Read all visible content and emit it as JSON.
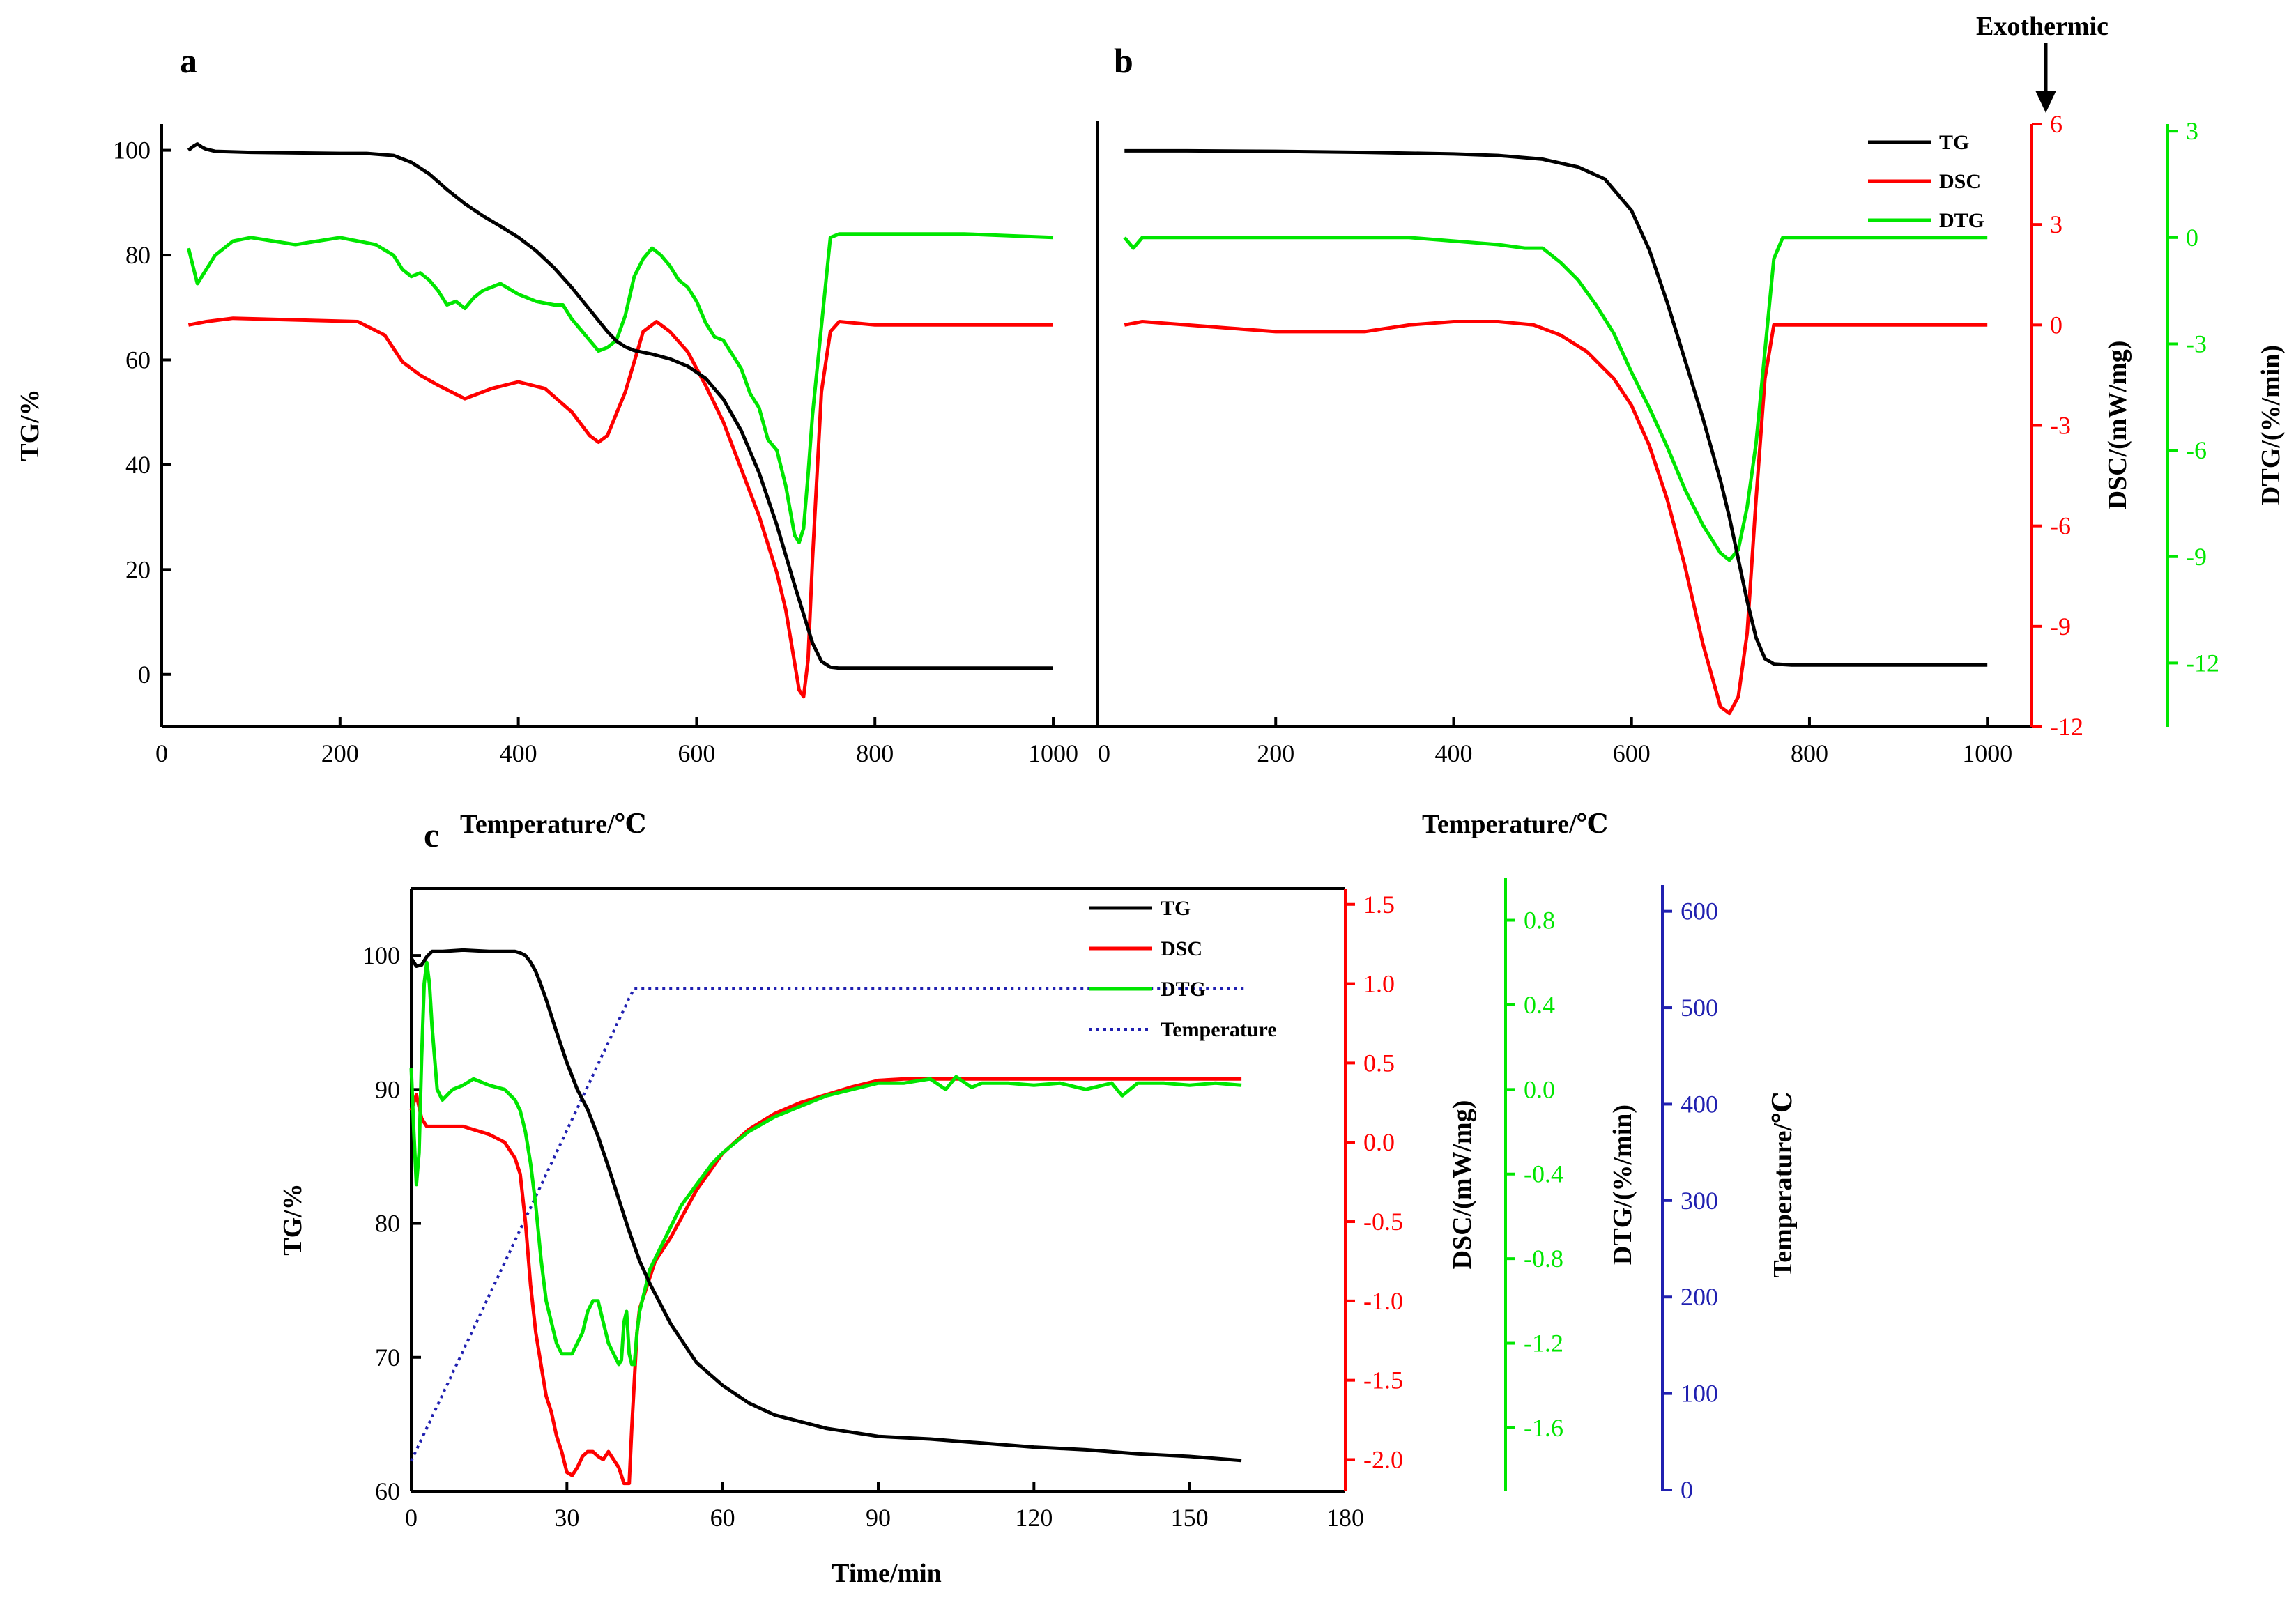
{
  "colors": {
    "tg": "#000000",
    "dsc": "#ff0000",
    "dtg": "#00e600",
    "temperature": "#2020b0"
  },
  "annotation": {
    "exothermic": "Exothermic"
  },
  "chart_data": [
    {
      "panel": "a",
      "type": "line",
      "xlabel": "Temperature/℃",
      "xlim": [
        0,
        1050
      ],
      "xticks": [
        0,
        200,
        400,
        600,
        800,
        1000
      ],
      "ylabel": "TG/%",
      "ylim": [
        -10,
        105
      ],
      "yticks": [
        0,
        20,
        40,
        60,
        80,
        100
      ],
      "series": [
        {
          "name": "TG",
          "axis": "left",
          "color": "#000000",
          "x": [
            30,
            35,
            40,
            45,
            50,
            60,
            80,
            100,
            150,
            200,
            230,
            260,
            280,
            300,
            320,
            340,
            360,
            380,
            400,
            420,
            440,
            460,
            480,
            500,
            510,
            520,
            530,
            550,
            570,
            590,
            610,
            630,
            650,
            670,
            690,
            710,
            730,
            740,
            750,
            760,
            800,
            900,
            1000
          ],
          "y": [
            100,
            100.7,
            101.2,
            100.6,
            100.2,
            99.8,
            99.7,
            99.6,
            99.5,
            99.4,
            99.4,
            99,
            97.7,
            95.5,
            92.5,
            89.8,
            87.5,
            85.5,
            83.4,
            80.8,
            77.6,
            73.8,
            69.6,
            65.4,
            63.6,
            62.5,
            61.8,
            61.1,
            60.2,
            58.8,
            56.5,
            52.5,
            46.5,
            38.5,
            28.5,
            17,
            6,
            2.5,
            1.4,
            1.2,
            1.2,
            1.2,
            1.2
          ]
        },
        {
          "name": "DSC",
          "axis": "right",
          "color": "#ff0000",
          "x": [
            30,
            50,
            80,
            150,
            220,
            250,
            270,
            290,
            310,
            340,
            370,
            400,
            430,
            460,
            480,
            490,
            500,
            520,
            540,
            555,
            570,
            590,
            610,
            630,
            650,
            670,
            690,
            700,
            710,
            715,
            720,
            725,
            730,
            740,
            750,
            760,
            800,
            900,
            1000
          ],
          "y": [
            0,
            0.1,
            0.2,
            0.15,
            0.1,
            -0.3,
            -1.1,
            -1.5,
            -1.8,
            -2.2,
            -1.9,
            -1.7,
            -1.9,
            -2.6,
            -3.3,
            -3.5,
            -3.3,
            -2,
            -0.2,
            0.1,
            -0.2,
            -0.8,
            -1.8,
            -2.9,
            -4.3,
            -5.7,
            -7.4,
            -8.5,
            -10.1,
            -10.9,
            -11.1,
            -10,
            -7,
            -2,
            -0.2,
            0.1,
            0,
            0,
            0
          ]
        },
        {
          "name": "DTG",
          "axis": "right2",
          "color": "#00e600",
          "x": [
            30,
            40,
            50,
            60,
            80,
            100,
            150,
            200,
            240,
            260,
            270,
            280,
            290,
            300,
            310,
            320,
            330,
            340,
            350,
            360,
            380,
            400,
            420,
            440,
            450,
            460,
            470,
            480,
            490,
            500,
            510,
            520,
            530,
            540,
            550,
            560,
            570,
            580,
            590,
            600,
            610,
            620,
            630,
            640,
            650,
            660,
            670,
            680,
            690,
            700,
            710,
            715,
            720,
            725,
            730,
            740,
            750,
            760,
            770,
            800,
            900,
            1000
          ],
          "y": [
            -0.3,
            -1.3,
            -0.9,
            -0.5,
            -0.1,
            0,
            -0.2,
            0,
            -0.2,
            -0.5,
            -0.9,
            -1.1,
            -1,
            -1.2,
            -1.5,
            -1.9,
            -1.8,
            -2,
            -1.7,
            -1.5,
            -1.3,
            -1.6,
            -1.8,
            -1.9,
            -1.9,
            -2.3,
            -2.6,
            -2.9,
            -3.2,
            -3.1,
            -2.9,
            -2.2,
            -1.1,
            -0.6,
            -0.3,
            -0.5,
            -0.8,
            -1.2,
            -1.4,
            -1.8,
            -2.4,
            -2.8,
            -2.9,
            -3.3,
            -3.7,
            -4.4,
            -4.8,
            -5.7,
            -6,
            -7,
            -8.4,
            -8.6,
            -8.2,
            -6.7,
            -5,
            -2.5,
            0,
            0.1,
            0.1,
            0.1,
            0.1,
            0
          ]
        }
      ]
    },
    {
      "panel": "b",
      "type": "line",
      "xlabel": "Temperature/℃",
      "xlim": [
        0,
        1050
      ],
      "xticks": [
        200,
        400,
        600,
        800,
        1000
      ],
      "ylabel_right": "DSC/(mW/mg)",
      "ylim_right": [
        -12,
        6
      ],
      "yticks_right": [
        -12,
        -9,
        -6,
        -3,
        0,
        3,
        6
      ],
      "ylabel_right2": "DTG/(%/min)",
      "ylim_right2": [
        -13.8,
        3.2
      ],
      "yticks_right2": [
        -12,
        -9,
        -6,
        -3,
        0,
        3
      ],
      "legend": [
        "TG",
        "DSC",
        "DTG"
      ],
      "series": [
        {
          "name": "TG",
          "axis": "left",
          "color": "#000000",
          "x": [
            30,
            100,
            200,
            300,
            400,
            450,
            500,
            540,
            570,
            600,
            620,
            640,
            660,
            680,
            700,
            710,
            720,
            730,
            740,
            750,
            760,
            780,
            800,
            900,
            1000
          ],
          "y": [
            99.9,
            99.9,
            99.8,
            99.6,
            99.3,
            99,
            98.3,
            96.8,
            94.5,
            88.5,
            81,
            71,
            60,
            49,
            37,
            30,
            22,
            14,
            7,
            3,
            2,
            1.8,
            1.8,
            1.8,
            1.8
          ]
        },
        {
          "name": "DSC",
          "axis": "right",
          "color": "#ff0000",
          "x": [
            30,
            50,
            100,
            150,
            200,
            250,
            300,
            350,
            400,
            450,
            490,
            520,
            550,
            580,
            600,
            620,
            640,
            660,
            680,
            700,
            710,
            720,
            730,
            740,
            750,
            760,
            800,
            900,
            1000
          ],
          "y": [
            0,
            0.1,
            0,
            -0.1,
            -0.2,
            -0.2,
            -0.2,
            0,
            0.1,
            0.1,
            0,
            -0.3,
            -0.8,
            -1.6,
            -2.4,
            -3.6,
            -5.2,
            -7.2,
            -9.5,
            -11.4,
            -11.6,
            -11.1,
            -9.2,
            -5.2,
            -1.6,
            0,
            0,
            0,
            0
          ]
        },
        {
          "name": "DTG",
          "axis": "right2",
          "color": "#00e600",
          "x": [
            30,
            40,
            50,
            100,
            150,
            200,
            250,
            300,
            350,
            400,
            450,
            480,
            500,
            520,
            540,
            560,
            580,
            600,
            620,
            640,
            660,
            680,
            700,
            710,
            720,
            730,
            740,
            750,
            760,
            770,
            800,
            900,
            1000
          ],
          "y": [
            0,
            -0.3,
            0,
            0,
            0,
            0,
            0,
            0,
            0,
            -0.1,
            -0.2,
            -0.3,
            -0.3,
            -0.7,
            -1.2,
            -1.9,
            -2.7,
            -3.8,
            -4.8,
            -5.9,
            -7.1,
            -8.1,
            -8.9,
            -9.1,
            -8.8,
            -7.6,
            -5.8,
            -3.2,
            -0.6,
            0,
            0,
            0,
            0
          ]
        }
      ]
    },
    {
      "panel": "c",
      "type": "line",
      "xlabel": "Time/min",
      "xlim": [
        0,
        180
      ],
      "xticks": [
        0,
        30,
        60,
        90,
        120,
        150,
        180
      ],
      "ylabel": "TG/%",
      "ylim": [
        60,
        105
      ],
      "yticks": [
        60,
        70,
        80,
        90,
        100
      ],
      "ylabel_right": "DSC/(mW/mg)",
      "ylim_right": [
        -2.2,
        1.6
      ],
      "yticks_right": [
        -2.0,
        -1.5,
        -1.0,
        -0.5,
        0.0,
        0.5,
        1.0,
        1.5
      ],
      "ylabel_right2": "DTG/(%/min)",
      "ylim_right2": [
        -1.9,
        0.95
      ],
      "yticks_right2": [
        -1.6,
        -1.2,
        -0.8,
        -0.4,
        0.0,
        0.4,
        0.8
      ],
      "ylabel_right3": "Temperature/℃",
      "ylim_right3": [
        0,
        620
      ],
      "yticks_right3": [
        0,
        100,
        200,
        300,
        400,
        500,
        600
      ],
      "legend": [
        "TG",
        "DSC",
        "DTG",
        "Temperature"
      ],
      "series": [
        {
          "name": "TG",
          "axis": "left",
          "color": "#000000",
          "x": [
            0,
            1,
            2,
            3,
            4,
            5,
            6,
            10,
            15,
            20,
            21,
            22,
            23,
            24,
            25,
            26,
            28,
            30,
            32,
            34,
            36,
            38,
            40,
            42,
            44,
            46,
            50,
            55,
            60,
            65,
            70,
            80,
            90,
            100,
            110,
            120,
            130,
            140,
            150,
            160
          ],
          "y": [
            99.8,
            99.2,
            99.3,
            99.9,
            100.3,
            100.3,
            100.3,
            100.4,
            100.3,
            100.3,
            100.2,
            100,
            99.5,
            98.8,
            97.8,
            96.7,
            94.3,
            92,
            90,
            88.5,
            86.5,
            84.2,
            81.8,
            79.4,
            77.2,
            75.5,
            72.5,
            69.6,
            67.9,
            66.6,
            65.7,
            64.7,
            64.1,
            63.9,
            63.6,
            63.3,
            63.1,
            62.8,
            62.6,
            62.3
          ]
        },
        {
          "name": "DSC",
          "axis": "right",
          "color": "#ff0000",
          "x": [
            0,
            1,
            2,
            3,
            5,
            10,
            15,
            18,
            20,
            21,
            22,
            23,
            24,
            25,
            26,
            27,
            28,
            29,
            30,
            31,
            32,
            33,
            34,
            35,
            36,
            37,
            38,
            39,
            40,
            41,
            42,
            42.5,
            43,
            43.5,
            44,
            45,
            47,
            50,
            55,
            60,
            65,
            70,
            75,
            80,
            85,
            90,
            95,
            100,
            120,
            140,
            160
          ],
          "y": [
            0.2,
            0.3,
            0.15,
            0.1,
            0.1,
            0.1,
            0.05,
            0,
            -0.1,
            -0.2,
            -0.5,
            -0.9,
            -1.2,
            -1.4,
            -1.6,
            -1.7,
            -1.85,
            -1.95,
            -2.08,
            -2.1,
            -2.05,
            -1.98,
            -1.95,
            -1.95,
            -1.98,
            -2.0,
            -1.95,
            -2.0,
            -2.05,
            -2.15,
            -2.15,
            -1.8,
            -1.5,
            -1.2,
            -1.05,
            -0.95,
            -0.75,
            -0.6,
            -0.3,
            -0.07,
            0.08,
            0.18,
            0.25,
            0.3,
            0.35,
            0.39,
            0.4,
            0.4,
            0.4,
            0.4,
            0.4
          ]
        },
        {
          "name": "DTG",
          "axis": "right2",
          "color": "#00e600",
          "x": [
            0,
            0.5,
            1,
            1.5,
            2,
            2.5,
            3,
            3.5,
            4,
            5,
            6,
            8,
            10,
            12,
            15,
            18,
            20,
            21,
            22,
            23,
            24,
            25,
            26,
            27,
            28,
            29,
            30,
            31,
            32,
            33,
            34,
            35,
            36,
            37,
            38,
            39,
            40,
            40.5,
            41,
            41.5,
            42,
            42.5,
            43,
            43.5,
            44,
            45,
            46,
            48,
            50,
            52,
            55,
            58,
            60,
            65,
            70,
            75,
            80,
            85,
            90,
            95,
            100,
            103,
            105,
            108,
            110,
            115,
            120,
            125,
            130,
            135,
            137,
            140,
            145,
            150,
            155,
            160
          ],
          "y": [
            0.1,
            -0.2,
            -0.45,
            -0.3,
            0.15,
            0.5,
            0.6,
            0.5,
            0.3,
            0,
            -0.05,
            0,
            0.02,
            0.05,
            0.02,
            0.0,
            -0.05,
            -0.1,
            -0.2,
            -0.35,
            -0.55,
            -0.8,
            -1.0,
            -1.1,
            -1.2,
            -1.25,
            -1.25,
            -1.25,
            -1.2,
            -1.15,
            -1.05,
            -1.0,
            -1.0,
            -1.1,
            -1.2,
            -1.25,
            -1.3,
            -1.28,
            -1.1,
            -1.05,
            -1.25,
            -1.3,
            -1.3,
            -1.15,
            -1.05,
            -0.95,
            -0.85,
            -0.75,
            -0.65,
            -0.55,
            -0.45,
            -0.35,
            -0.3,
            -0.2,
            -0.13,
            -0.08,
            -0.03,
            0,
            0.03,
            0.03,
            0.05,
            0.0,
            0.06,
            0.01,
            0.03,
            0.03,
            0.02,
            0.03,
            0.0,
            0.03,
            -0.03,
            0.03,
            0.03,
            0.02,
            0.03,
            0.02
          ]
        },
        {
          "name": "Temperature",
          "axis": "right3",
          "color": "#2020b0",
          "dashed": true,
          "x": [
            0,
            42,
            43,
            161
          ],
          "y": [
            30,
            510,
            520,
            520
          ]
        }
      ]
    }
  ]
}
